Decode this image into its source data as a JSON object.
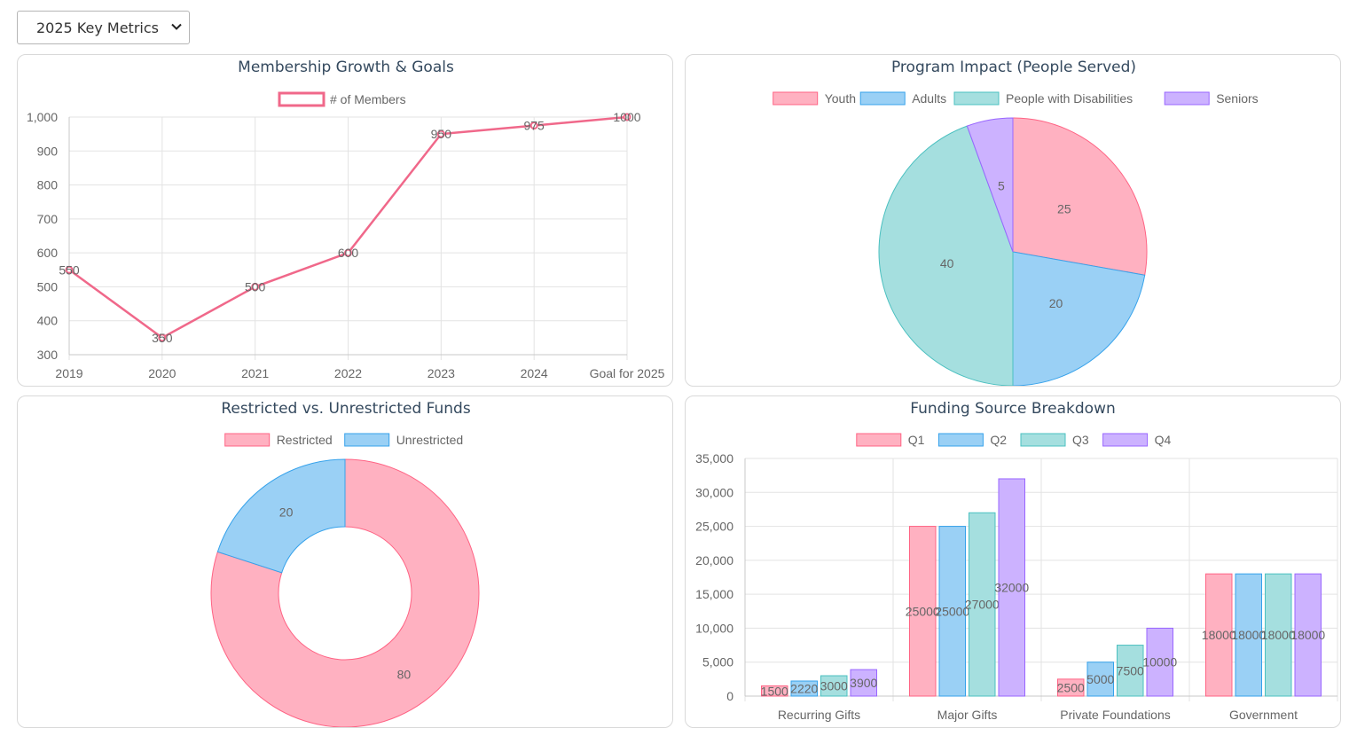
{
  "selector": {
    "value": "2025 Key Metrics"
  },
  "colors": {
    "pink_fill": "#ffb1c1",
    "pink_border": "#ff6384",
    "blue_fill": "#9ad0f5",
    "blue_border": "#36a2eb",
    "teal_fill": "#a5dfdf",
    "teal_border": "#4bc0c0",
    "purple_fill": "#ccb2ff",
    "purple_border": "#9966ff",
    "line": "#f0688a"
  },
  "chart_data": [
    {
      "id": "membership",
      "type": "line",
      "title": "Membership Growth & Goals",
      "series": [
        {
          "name": "# of Members",
          "values": [
            550,
            350,
            500,
            600,
            950,
            975,
            1000
          ]
        }
      ],
      "categories": [
        "2019",
        "2020",
        "2021",
        "2022",
        "2023",
        "2024",
        "Goal for 2025"
      ],
      "yticks": [
        "1,000",
        "900",
        "800",
        "700",
        "600",
        "500",
        "400",
        "300"
      ],
      "ylim": [
        300,
        1000
      ],
      "grid": true,
      "legend": "top"
    },
    {
      "id": "program",
      "type": "pie",
      "title": "Program Impact (People Served)",
      "labels": [
        "Youth",
        "Adults",
        "People with Disabilities",
        "Seniors"
      ],
      "values": [
        25,
        20,
        40,
        5
      ],
      "legend": "top"
    },
    {
      "id": "funds",
      "type": "pie",
      "subtype": "doughnut",
      "title": "Restricted vs. Unrestricted Funds",
      "labels": [
        "Restricted",
        "Unrestricted"
      ],
      "values": [
        80,
        20
      ],
      "legend": "top"
    },
    {
      "id": "funding",
      "type": "bar",
      "title": "Funding Source Breakdown",
      "categories": [
        "Recurring Gifts",
        "Major Gifts",
        "Private Foundations",
        "Government"
      ],
      "series": [
        {
          "name": "Q1",
          "values": [
            1500,
            25000,
            2500,
            18000
          ]
        },
        {
          "name": "Q2",
          "values": [
            2220,
            25000,
            5000,
            18000
          ]
        },
        {
          "name": "Q3",
          "values": [
            3000,
            27000,
            7500,
            18000
          ]
        },
        {
          "name": "Q4",
          "values": [
            3900,
            32000,
            10000,
            18000
          ]
        }
      ],
      "yticks": [
        "35,000",
        "30,000",
        "25,000",
        "20,000",
        "15,000",
        "10,000",
        "5,000",
        "0"
      ],
      "ylim": [
        0,
        35000
      ],
      "grid": true,
      "legend": "top"
    }
  ]
}
